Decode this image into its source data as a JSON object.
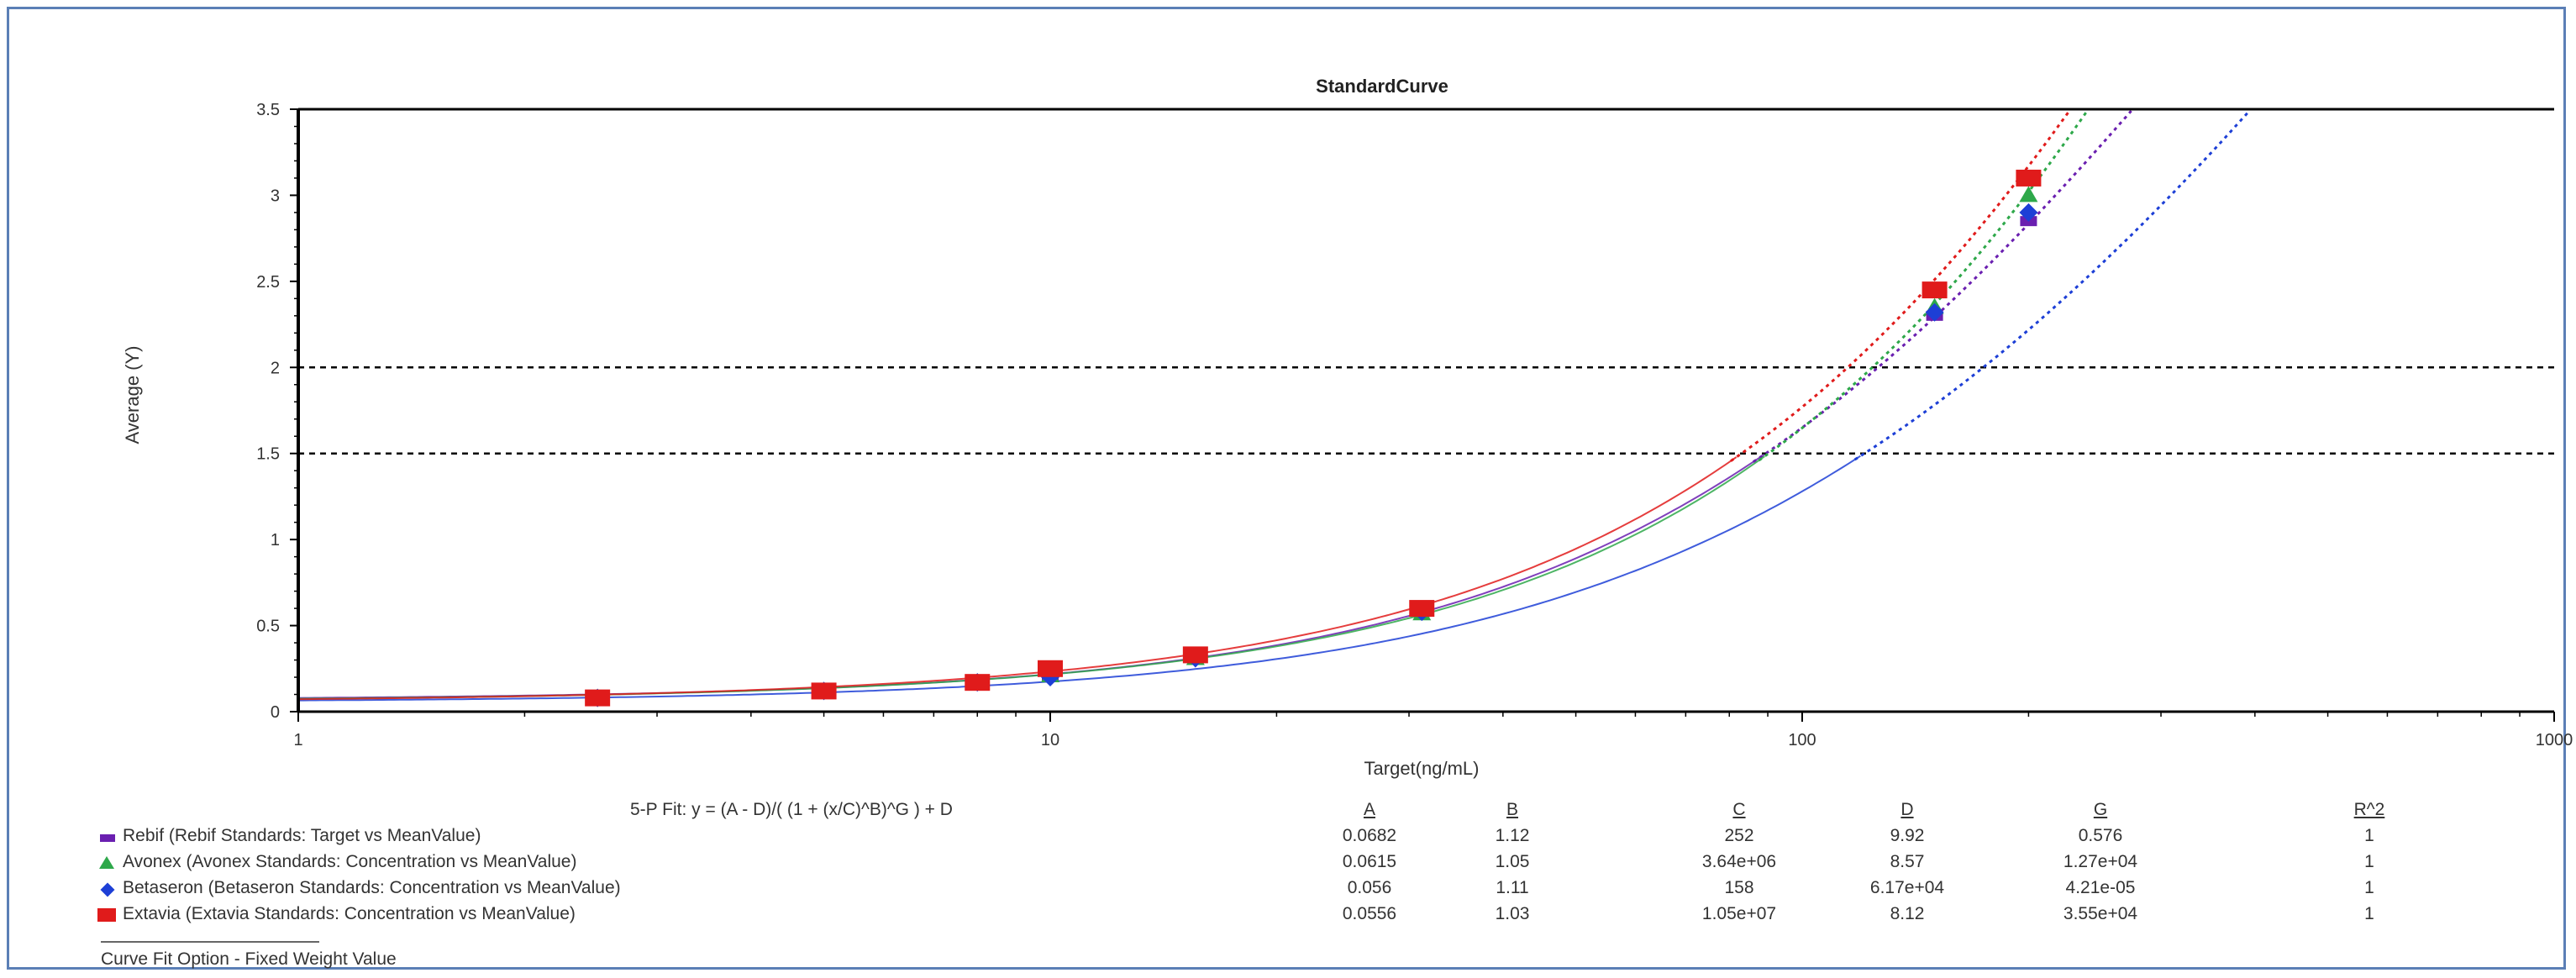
{
  "chart_data": {
    "type": "scatter",
    "title": "StandardCurve",
    "xlabel": "Target(ng/mL)",
    "ylabel": "Average (Y)",
    "xscale": "log",
    "xlim": [
      1,
      1000
    ],
    "ylim": [
      0,
      3.5
    ],
    "x_tick_labels": [
      "1",
      "10",
      "100",
      "1000"
    ],
    "y_ticks": [
      0,
      0.5,
      1,
      1.5,
      2,
      2.5,
      3,
      3.5
    ],
    "y_tick_labels": [
      "0",
      "0.5",
      "1",
      "1.5",
      "2",
      "2.5",
      "3",
      "3.5"
    ],
    "reference_lines": [
      2,
      1.5
    ],
    "grid": false,
    "fit_equation": "5-P Fit: y = (A - D)/( (1 + (x/C)^B)^G ) + D",
    "columns": [
      "A",
      "B",
      "C",
      "D",
      "G",
      "R^2"
    ],
    "series": [
      {
        "name": "Rebif (Rebif Standards: Target vs MeanValue)",
        "color": "#6a1fb0",
        "marker": "dash",
        "params": {
          "A": 0.0682,
          "B": 1.12,
          "C": 252,
          "D": 9.92,
          "G": 0.576
        },
        "param_labels": [
          "0.0682",
          "1.12",
          "252",
          "9.92",
          "0.576",
          "1"
        ],
        "points": [
          [
            2.5,
            0.08
          ],
          [
            5,
            0.12
          ],
          [
            8,
            0.17
          ],
          [
            10,
            0.2
          ],
          [
            15.6,
            0.31
          ],
          [
            31.2,
            0.58
          ],
          [
            150,
            2.3
          ],
          [
            200,
            2.85
          ]
        ]
      },
      {
        "name": "Avonex (Avonex Standards: Concentration vs MeanValue)",
        "color": "#2ea84a",
        "marker": "triangle",
        "params": {
          "A": 0.0615,
          "B": 1.05,
          "C": 3640000,
          "D": 8.57,
          "G": 12700
        },
        "param_labels": [
          "0.0615",
          "1.05",
          "3.64e+06",
          "8.57",
          "1.27e+04",
          "1"
        ],
        "points": [
          [
            2.5,
            0.08
          ],
          [
            5,
            0.12
          ],
          [
            8,
            0.17
          ],
          [
            10,
            0.21
          ],
          [
            15.6,
            0.31
          ],
          [
            31.2,
            0.57
          ],
          [
            150,
            2.35
          ],
          [
            200,
            3.0
          ]
        ]
      },
      {
        "name": "Betaseron (Betaseron Standards: Concentration vs MeanValue)",
        "color": "#1d3fd6",
        "marker": "diamond",
        "params": {
          "A": 0.056,
          "B": 1.11,
          "C": 158,
          "D": 61700,
          "G": 4.21e-05
        },
        "param_labels": [
          "0.056",
          "1.11",
          "158",
          "6.17e+04",
          "4.21e-05",
          "1"
        ],
        "points": [
          [
            2.5,
            0.08
          ],
          [
            5,
            0.12
          ],
          [
            8,
            0.17
          ],
          [
            10,
            0.2
          ],
          [
            15.6,
            0.31
          ],
          [
            31.2,
            0.58
          ],
          [
            150,
            2.32
          ],
          [
            200,
            2.9
          ]
        ]
      },
      {
        "name": "Extavia (Extavia Standards: Concentration vs MeanValue)",
        "color": "#e01b1b",
        "marker": "square",
        "params": {
          "A": 0.0556,
          "B": 1.03,
          "C": 10500000,
          "D": 8.12,
          "G": 35500
        },
        "param_labels": [
          "0.0556",
          "1.03",
          "1.05e+07",
          "8.12",
          "3.55e+04",
          "1"
        ],
        "points": [
          [
            2.5,
            0.08
          ],
          [
            5,
            0.12
          ],
          [
            8,
            0.17
          ],
          [
            10,
            0.25
          ],
          [
            15.6,
            0.33
          ],
          [
            31.2,
            0.6
          ],
          [
            150,
            2.45
          ],
          [
            200,
            3.1
          ]
        ]
      }
    ],
    "footer": "Curve Fit Option - Fixed Weight Value"
  }
}
